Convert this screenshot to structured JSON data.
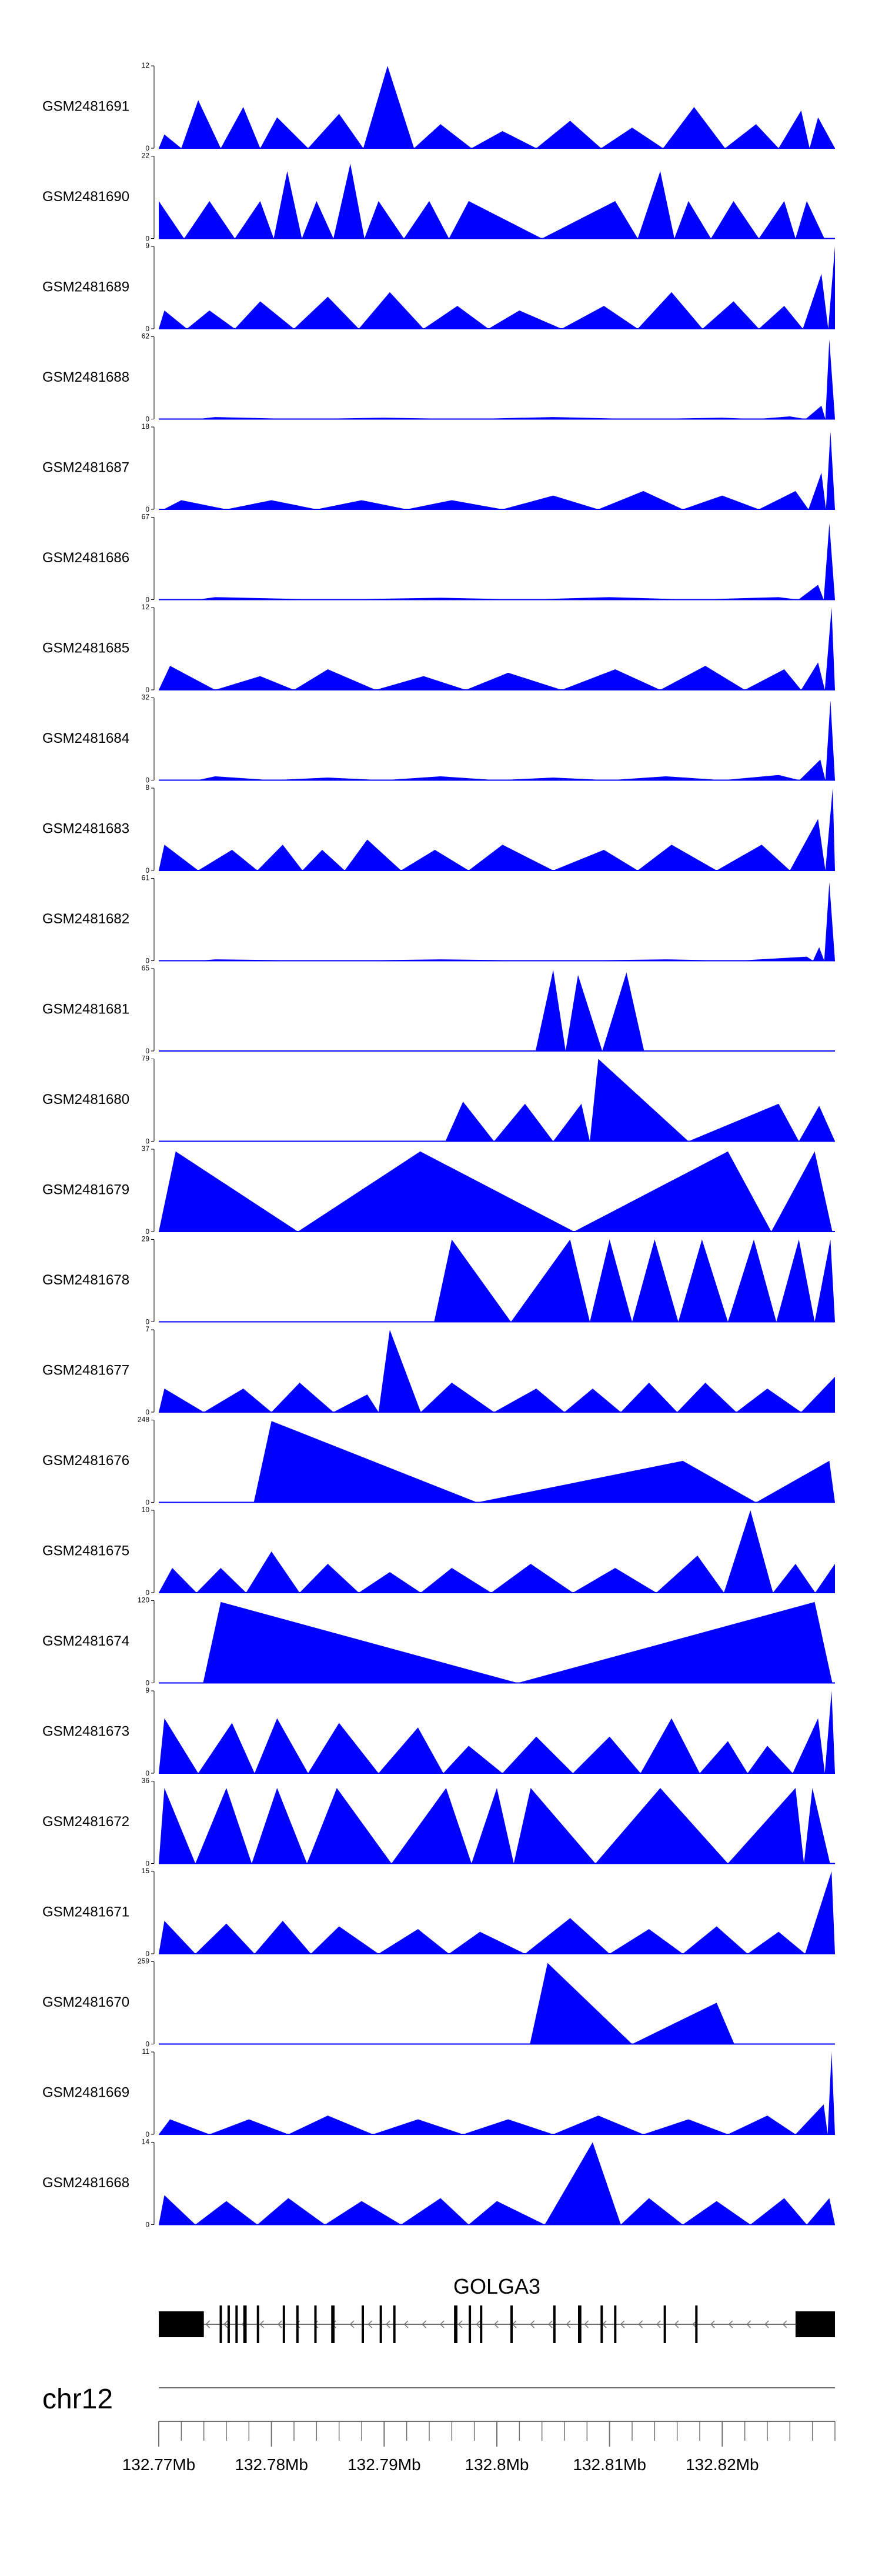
{
  "colors": {
    "signal": "#0000ff",
    "gene": "#000000",
    "axis": "#707070"
  },
  "tracks": [
    {
      "label": "GSM2481691",
      "ymax": "12",
      "ymin": "0",
      "peaks": [
        [
          132.7705,
          2.0
        ],
        [
          132.7735,
          7.0
        ],
        [
          132.7775,
          6.0
        ],
        [
          132.7805,
          4.5
        ],
        [
          132.786,
          5.0
        ],
        [
          132.7903,
          12.0
        ],
        [
          132.795,
          3.5
        ],
        [
          132.8005,
          2.5
        ],
        [
          132.8065,
          4.0
        ],
        [
          132.812,
          3.0
        ],
        [
          132.8175,
          6.0
        ],
        [
          132.823,
          3.5
        ],
        [
          132.827,
          5.5
        ],
        [
          132.8285,
          4.5
        ]
      ]
    },
    {
      "label": "GSM2481690",
      "ymax": "22",
      "ymin": "0",
      "peaks": [
        [
          132.77,
          10.0
        ],
        [
          132.7745,
          10.0
        ],
        [
          132.779,
          10.0
        ],
        [
          132.7814,
          18.0
        ],
        [
          132.784,
          10.0
        ],
        [
          132.787,
          20.0
        ],
        [
          132.7895,
          10.0
        ],
        [
          132.794,
          10.0
        ],
        [
          132.7975,
          10.0
        ],
        [
          132.8105,
          10.0
        ],
        [
          132.8145,
          18.0
        ],
        [
          132.817,
          10.0
        ],
        [
          132.821,
          10.0
        ],
        [
          132.8255,
          10.0
        ],
        [
          132.8275,
          10.0
        ]
      ]
    },
    {
      "label": "GSM2481689",
      "ymax": "9",
      "ymin": "0",
      "peaks": [
        [
          132.7705,
          2.0
        ],
        [
          132.7745,
          2.0
        ],
        [
          132.779,
          3.0
        ],
        [
          132.785,
          3.5
        ],
        [
          132.7905,
          4.0
        ],
        [
          132.7965,
          2.5
        ],
        [
          132.802,
          2.0
        ],
        [
          132.8095,
          2.5
        ],
        [
          132.8155,
          4.0
        ],
        [
          132.821,
          3.0
        ],
        [
          132.8255,
          2.5
        ],
        [
          132.8288,
          6.0
        ],
        [
          132.83,
          9.0
        ]
      ]
    },
    {
      "label": "GSM2481688",
      "ymax": "62",
      "ymin": "0",
      "peaks": [
        [
          132.775,
          1.5
        ],
        [
          132.79,
          1.0
        ],
        [
          132.805,
          1.5
        ],
        [
          132.82,
          1.0
        ],
        [
          132.826,
          2.0
        ],
        [
          132.8288,
          10.0
        ],
        [
          132.8295,
          60.0
        ]
      ]
    },
    {
      "label": "GSM2481687",
      "ymax": "18",
      "ymin": "0",
      "peaks": [
        [
          132.772,
          2.0
        ],
        [
          132.78,
          2.0
        ],
        [
          132.788,
          2.0
        ],
        [
          132.796,
          2.0
        ],
        [
          132.805,
          3.0
        ],
        [
          132.813,
          4.0
        ],
        [
          132.82,
          3.0
        ],
        [
          132.8265,
          4.0
        ],
        [
          132.8288,
          8.0
        ],
        [
          132.8296,
          17.0
        ]
      ]
    },
    {
      "label": "GSM2481686",
      "ymax": "67",
      "ymin": "0",
      "peaks": [
        [
          132.775,
          2.0
        ],
        [
          132.795,
          1.5
        ],
        [
          132.81,
          2.0
        ],
        [
          132.825,
          2.0
        ],
        [
          132.8285,
          12.0
        ],
        [
          132.8295,
          62.0
        ]
      ]
    },
    {
      "label": "GSM2481685",
      "ymax": "12",
      "ymin": "0",
      "peaks": [
        [
          132.771,
          3.5
        ],
        [
          132.779,
          2.0
        ],
        [
          132.785,
          3.0
        ],
        [
          132.7935,
          2.0
        ],
        [
          132.801,
          2.5
        ],
        [
          132.8105,
          3.0
        ],
        [
          132.8185,
          3.5
        ],
        [
          132.8255,
          3.0
        ],
        [
          132.8285,
          4.0
        ],
        [
          132.8297,
          12.0
        ]
      ]
    },
    {
      "label": "GSM2481684",
      "ymax": "32",
      "ymin": "0",
      "peaks": [
        [
          132.775,
          1.5
        ],
        [
          132.785,
          1.0
        ],
        [
          132.795,
          1.5
        ],
        [
          132.805,
          1.0
        ],
        [
          132.815,
          1.5
        ],
        [
          132.825,
          2.0
        ],
        [
          132.8287,
          8.0
        ],
        [
          132.8296,
          31.0
        ]
      ]
    },
    {
      "label": "GSM2481683",
      "ymax": "8",
      "ymin": "0",
      "peaks": [
        [
          132.7705,
          2.5
        ],
        [
          132.7765,
          2.0
        ],
        [
          132.781,
          2.5
        ],
        [
          132.7845,
          2.0
        ],
        [
          132.7885,
          3.0
        ],
        [
          132.7945,
          2.0
        ],
        [
          132.8005,
          2.5
        ],
        [
          132.8095,
          2.0
        ],
        [
          132.8155,
          2.5
        ],
        [
          132.8235,
          2.5
        ],
        [
          132.8285,
          5.0
        ],
        [
          132.8298,
          8.0
        ]
      ]
    },
    {
      "label": "GSM2481682",
      "ymax": "61",
      "ymin": "0",
      "peaks": [
        [
          132.775,
          1.0
        ],
        [
          132.795,
          1.0
        ],
        [
          132.815,
          1.0
        ],
        [
          132.8275,
          3.0
        ],
        [
          132.8286,
          10.0
        ],
        [
          132.8295,
          58.0
        ]
      ]
    },
    {
      "label": "GSM2481681",
      "ymax": "65",
      "ymin": "0",
      "peaks": [
        [
          132.805,
          64.0
        ],
        [
          132.8072,
          60.0
        ],
        [
          132.8115,
          62.0
        ]
      ]
    },
    {
      "label": "GSM2481680",
      "ymax": "79",
      "ymin": "0",
      "peaks": [
        [
          132.797,
          38.0
        ],
        [
          132.8025,
          36.0
        ],
        [
          132.8075,
          36.0
        ],
        [
          132.809,
          79.0
        ],
        [
          132.825,
          36.0
        ],
        [
          132.8286,
          34.0
        ]
      ]
    },
    {
      "label": "GSM2481679",
      "ymax": "37",
      "ymin": "0",
      "peaks": [
        [
          132.7715,
          36.0
        ],
        [
          132.7932,
          36.0
        ],
        [
          132.8205,
          36.0
        ],
        [
          132.8282,
          36.0
        ]
      ]
    },
    {
      "label": "GSM2481678",
      "ymax": "29",
      "ymin": "0",
      "peaks": [
        [
          132.796,
          29.0
        ],
        [
          132.8065,
          29.0
        ],
        [
          132.81,
          29.0
        ],
        [
          132.814,
          29.0
        ],
        [
          132.8182,
          29.0
        ],
        [
          132.8228,
          29.0
        ],
        [
          132.8268,
          29.0
        ],
        [
          132.8296,
          29.0
        ]
      ]
    },
    {
      "label": "GSM2481677",
      "ymax": "7",
      "ymin": "0",
      "peaks": [
        [
          132.7705,
          2.0
        ],
        [
          132.7775,
          2.0
        ],
        [
          132.7825,
          2.5
        ],
        [
          132.7885,
          1.5
        ],
        [
          132.7905,
          7.0
        ],
        [
          132.796,
          2.5
        ],
        [
          132.8035,
          2.0
        ],
        [
          132.8085,
          2.0
        ],
        [
          132.8135,
          2.5
        ],
        [
          132.8185,
          2.5
        ],
        [
          132.824,
          2.0
        ],
        [
          132.83,
          3.0
        ]
      ]
    },
    {
      "label": "GSM2481676",
      "ymax": "248",
      "ymin": "0",
      "peaks": [
        [
          132.78,
          245.0
        ],
        [
          132.8165,
          125.0
        ],
        [
          132.8295,
          125.0
        ]
      ]
    },
    {
      "label": "GSM2481675",
      "ymax": "10",
      "ymin": "0",
      "peaks": [
        [
          132.7712,
          3.0
        ],
        [
          132.7755,
          3.0
        ],
        [
          132.78,
          5.0
        ],
        [
          132.785,
          3.5
        ],
        [
          132.7905,
          2.5
        ],
        [
          132.796,
          3.0
        ],
        [
          132.803,
          3.5
        ],
        [
          132.8105,
          3.0
        ],
        [
          132.8178,
          4.5
        ],
        [
          132.8225,
          10.0
        ],
        [
          132.8265,
          3.5
        ],
        [
          132.83,
          3.5
        ]
      ]
    },
    {
      "label": "GSM2481674",
      "ymax": "120",
      "ymin": "0",
      "peaks": [
        [
          132.7755,
          118.0
        ],
        [
          132.8282,
          118.0
        ]
      ]
    },
    {
      "label": "GSM2481673",
      "ymax": "9",
      "ymin": "0",
      "peaks": [
        [
          132.7705,
          6.0
        ],
        [
          132.7765,
          5.5
        ],
        [
          132.7805,
          6.0
        ],
        [
          132.786,
          5.5
        ],
        [
          132.793,
          5.0
        ],
        [
          132.7975,
          3.0
        ],
        [
          132.8035,
          4.0
        ],
        [
          132.81,
          4.0
        ],
        [
          132.8155,
          6.0
        ],
        [
          132.8205,
          3.5
        ],
        [
          132.824,
          3.0
        ],
        [
          132.8285,
          6.0
        ],
        [
          132.8297,
          9.0
        ]
      ]
    },
    {
      "label": "GSM2481672",
      "ymax": "36",
      "ymin": "0",
      "peaks": [
        [
          132.7705,
          33.0
        ],
        [
          132.776,
          33.0
        ],
        [
          132.7805,
          33.0
        ],
        [
          132.7858,
          33.0
        ],
        [
          132.7955,
          33.0
        ],
        [
          132.8,
          33.0
        ],
        [
          132.803,
          33.0
        ],
        [
          132.8145,
          33.0
        ],
        [
          132.8265,
          33.0
        ],
        [
          132.828,
          33.0
        ]
      ]
    },
    {
      "label": "GSM2481671",
      "ymax": "15",
      "ymin": "0",
      "peaks": [
        [
          132.7705,
          6.0
        ],
        [
          132.776,
          5.5
        ],
        [
          132.781,
          6.0
        ],
        [
          132.786,
          5.0
        ],
        [
          132.793,
          4.5
        ],
        [
          132.7985,
          4.0
        ],
        [
          132.8065,
          6.5
        ],
        [
          132.8135,
          4.5
        ],
        [
          132.8195,
          5.0
        ],
        [
          132.825,
          4.0
        ],
        [
          132.8297,
          15.0
        ]
      ]
    },
    {
      "label": "GSM2481670",
      "ymax": "259",
      "ymin": "0",
      "peaks": [
        [
          132.8045,
          255.0
        ],
        [
          132.8195,
          130.0
        ]
      ]
    },
    {
      "label": "GSM2481669",
      "ymax": "11",
      "ymin": "0",
      "peaks": [
        [
          132.771,
          2.0
        ],
        [
          132.778,
          2.0
        ],
        [
          132.785,
          2.5
        ],
        [
          132.793,
          2.0
        ],
        [
          132.801,
          2.0
        ],
        [
          132.809,
          2.5
        ],
        [
          132.817,
          2.0
        ],
        [
          132.824,
          2.5
        ],
        [
          132.829,
          4.0
        ],
        [
          132.8297,
          11.0
        ]
      ]
    },
    {
      "label": "GSM2481668",
      "ymax": "14",
      "ymin": "0",
      "peaks": [
        [
          132.7705,
          5.0
        ],
        [
          132.776,
          4.0
        ],
        [
          132.7815,
          4.5
        ],
        [
          132.788,
          4.0
        ],
        [
          132.795,
          4.5
        ],
        [
          132.8,
          4.0
        ],
        [
          132.8085,
          14.0
        ],
        [
          132.8135,
          4.5
        ],
        [
          132.8195,
          4.0
        ],
        [
          132.8255,
          4.5
        ],
        [
          132.8295,
          4.5
        ]
      ]
    }
  ],
  "gene": {
    "name": "GOLGA3",
    "start": 132.77,
    "end": 132.83,
    "strand": "-",
    "exons": [
      [
        132.77,
        132.774,
        "utr"
      ],
      [
        132.7754,
        132.7756,
        "cds"
      ],
      [
        132.7761,
        132.7763,
        "cds"
      ],
      [
        132.7768,
        132.777,
        "cds"
      ],
      [
        132.7775,
        132.7778,
        "cds"
      ],
      [
        132.7787,
        132.7789,
        "cds"
      ],
      [
        132.781,
        132.7812,
        "cds"
      ],
      [
        132.7822,
        132.7824,
        "cds"
      ],
      [
        132.7838,
        132.784,
        "cds"
      ],
      [
        132.7853,
        132.7856,
        "cds"
      ],
      [
        132.788,
        132.7882,
        "cds"
      ],
      [
        132.7896,
        132.7898,
        "cds"
      ],
      [
        132.7908,
        132.791,
        "cds"
      ],
      [
        132.7962,
        132.7965,
        "cds"
      ],
      [
        132.7975,
        132.7977,
        "cds"
      ],
      [
        132.7985,
        132.7987,
        "cds"
      ],
      [
        132.8012,
        132.8014,
        "cds"
      ],
      [
        132.805,
        132.8052,
        "cds"
      ],
      [
        132.8072,
        132.8075,
        "cds"
      ],
      [
        132.8092,
        132.8094,
        "cds"
      ],
      [
        132.8104,
        132.8106,
        "cds"
      ],
      [
        132.8148,
        132.815,
        "cds"
      ],
      [
        132.8176,
        132.8178,
        "cds"
      ],
      [
        132.8265,
        132.83,
        "utr"
      ]
    ]
  },
  "axis": {
    "chrom": "chr12",
    "start": 132.77,
    "end": 132.83,
    "minor_step": 0.002,
    "major": [
      {
        "value": 132.77,
        "label": "132.77Mb"
      },
      {
        "value": 132.78,
        "label": "132.78Mb"
      },
      {
        "value": 132.79,
        "label": "132.79Mb"
      },
      {
        "value": 132.8,
        "label": "132.8Mb"
      },
      {
        "value": 132.81,
        "label": "132.81Mb"
      },
      {
        "value": 132.82,
        "label": "132.82Mb"
      }
    ]
  }
}
